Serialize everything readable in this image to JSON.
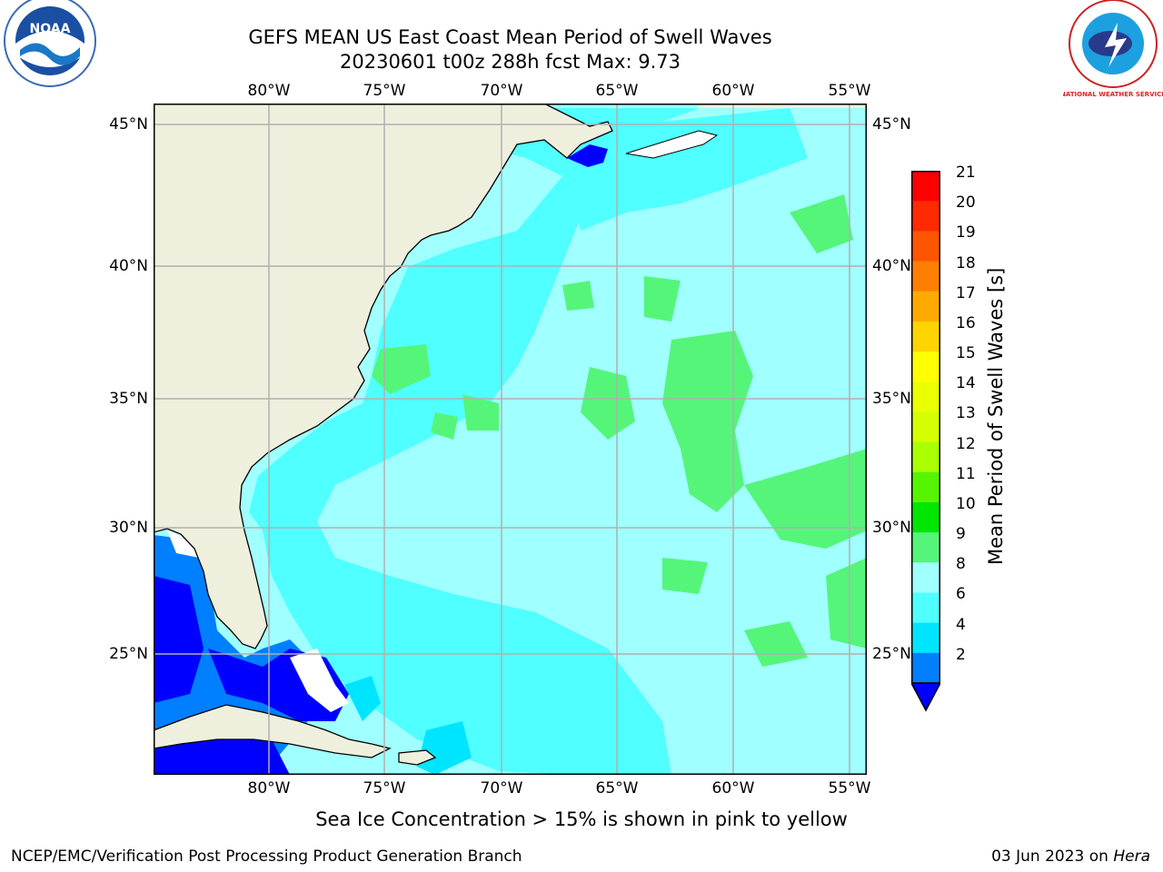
{
  "header": {
    "title_line1": "GEFS MEAN US East Coast Mean Period of Swell Waves",
    "title_line2": "20230601 t00z 288h fcst   Max: 9.73"
  },
  "logos": {
    "left": {
      "icon": "noaa-logo-icon",
      "text": "NOAA"
    },
    "right": {
      "icon": "nws-logo-icon",
      "text": "NATIONAL WEATHER SERVICE"
    }
  },
  "map": {
    "lon_labels": [
      "80°W",
      "75°W",
      "70°W",
      "65°W",
      "60°W",
      "55°W"
    ],
    "lat_labels": [
      "45°N",
      "40°N",
      "35°N",
      "30°N",
      "25°N"
    ],
    "colors": {
      "land": "#efefdd",
      "ocean_8_9": "#a0ffff",
      "ocean_6_8": "#50ffff",
      "ocean_9_10": "#55f57a",
      "shallow_4_6": "#00e5ff",
      "shallow_2_4": "#007fff",
      "shallow_lt2": "#0000ff",
      "grid": "#b0b0b0"
    }
  },
  "colorbar": {
    "label": "Mean Period of Swell Waves [s]",
    "ticks": [
      "21",
      "20",
      "19",
      "18",
      "17",
      "16",
      "15",
      "14",
      "13",
      "12",
      "11",
      "10",
      "9",
      "8",
      "6",
      "4",
      "2"
    ],
    "colors": [
      "#ff0000",
      "#ff2a00",
      "#ff5500",
      "#ff8000",
      "#ffaa00",
      "#ffd400",
      "#ffff00",
      "#eaff00",
      "#d5ff00",
      "#aaff00",
      "#55f500",
      "#00e600",
      "#55f57a",
      "#a0ffff",
      "#50ffff",
      "#00e5ff",
      "#007fff"
    ],
    "extend_color": "#0000ff"
  },
  "footnote": "Sea Ice Concentration > 15% is shown in pink to yellow",
  "footer": {
    "left": "NCEP/EMC/Verification Post Processing Product Generation Branch",
    "date": "03 Jun 2023 on",
    "machine": "Hera"
  }
}
